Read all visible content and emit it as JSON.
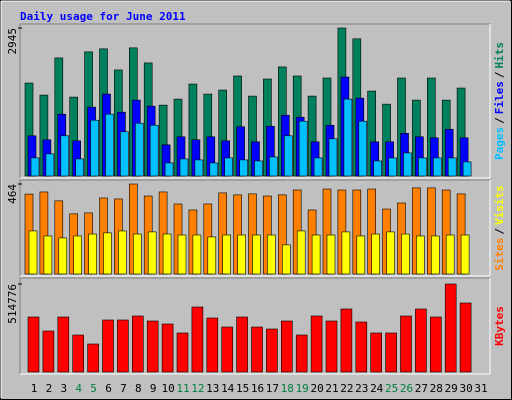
{
  "title": "Daily usage for June 2011",
  "chart_data": [
    {
      "type": "bar",
      "ylim": [
        0,
        2945
      ],
      "yticks": [
        2945
      ],
      "legend_separator": "/",
      "series": [
        {
          "name": "Hits",
          "color": "#00805c",
          "values": [
            1850,
            1610,
            2350,
            1570,
            2470,
            2530,
            2110,
            2550,
            2250,
            1410,
            1530,
            1830,
            1630,
            1710,
            1990,
            1590,
            1930,
            2170,
            1990,
            1590,
            1950,
            2945,
            2730,
            1690,
            1430,
            1950,
            1510,
            1950,
            1510,
            1750,
            null
          ]
        },
        {
          "name": "Files",
          "color": "#0000ff",
          "values": [
            800,
            720,
            1230,
            700,
            1370,
            1630,
            1270,
            1510,
            1390,
            620,
            780,
            720,
            780,
            700,
            980,
            680,
            990,
            1210,
            1170,
            680,
            1010,
            1970,
            1550,
            680,
            680,
            850,
            780,
            760,
            930,
            760,
            null
          ]
        },
        {
          "name": "Pages",
          "color": "#00c0ff",
          "values": [
            360,
            440,
            800,
            340,
            1110,
            1230,
            880,
            1050,
            1010,
            260,
            340,
            320,
            260,
            360,
            320,
            300,
            380,
            800,
            1090,
            360,
            740,
            1530,
            1090,
            300,
            360,
            460,
            360,
            360,
            360,
            280,
            null
          ]
        }
      ]
    },
    {
      "type": "bar",
      "ylim": [
        0,
        464
      ],
      "yticks": [
        464
      ],
      "legend_separator": "/",
      "series": [
        {
          "name": "Visits",
          "color": "#ffff00",
          "values": [
            222,
            196,
            186,
            196,
            206,
            212,
            222,
            206,
            217,
            206,
            201,
            201,
            191,
            201,
            201,
            201,
            201,
            150,
            222,
            201,
            201,
            217,
            196,
            206,
            217,
            206,
            196,
            196,
            201,
            201,
            null
          ]
        },
        {
          "name": "Sites",
          "color": "#ff8000",
          "values": [
            412,
            423,
            377,
            310,
            315,
            392,
            387,
            464,
            402,
            423,
            361,
            330,
            361,
            418,
            408,
            413,
            402,
            408,
            433,
            330,
            438,
            433,
            433,
            438,
            335,
            366,
            444,
            444,
            433,
            413,
            null
          ]
        }
      ]
    },
    {
      "type": "bar",
      "ylim": [
        0,
        514776
      ],
      "yticks": [
        514776
      ],
      "categories": [
        "1",
        "2",
        "3",
        "4",
        "5",
        "6",
        "7",
        "8",
        "9",
        "10",
        "11",
        "12",
        "13",
        "14",
        "15",
        "16",
        "17",
        "18",
        "19",
        "20",
        "21",
        "22",
        "23",
        "24",
        "25",
        "26",
        "27",
        "28",
        "29",
        "30",
        "31"
      ],
      "category_colors": [
        "#000000",
        "#000000",
        "#000000",
        "#008040",
        "#008040",
        "#000000",
        "#000000",
        "#000000",
        "#000000",
        "#000000",
        "#008040",
        "#008040",
        "#000000",
        "#000000",
        "#000000",
        "#000000",
        "#000000",
        "#008040",
        "#008040",
        "#000000",
        "#000000",
        "#000000",
        "#000000",
        "#000000",
        "#008040",
        "#008040",
        "#000000",
        "#000000",
        "#000000",
        "#000000",
        "#000000"
      ],
      "series": [
        {
          "name": "KBytes",
          "color": "#ff0000",
          "values": [
            321700,
            239800,
            321700,
            216400,
            163800,
            304200,
            304200,
            327600,
            298300,
            280800,
            228200,
            380200,
            315900,
            263200,
            321700,
            263200,
            251500,
            298300,
            216400,
            327600,
            298300,
            368500,
            292500,
            228200,
            228200,
            327600,
            368500,
            321700,
            514776,
            403600,
            null
          ]
        }
      ]
    }
  ]
}
